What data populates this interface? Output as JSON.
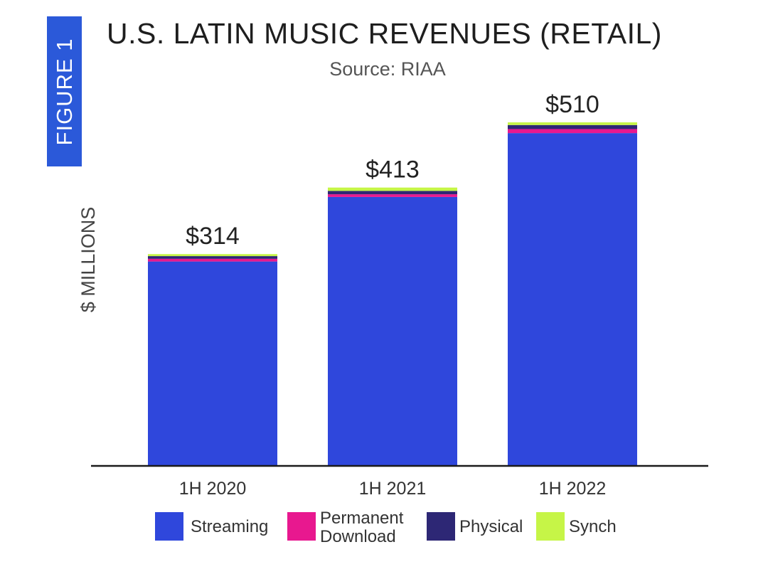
{
  "badge": {
    "label": "FIGURE 1"
  },
  "chart_data": {
    "type": "bar",
    "stacked": true,
    "title": "U.S. LATIN MUSIC REVENUES (RETAIL)",
    "subtitle": "Source: RIAA",
    "ylabel": "$ MILLIONS",
    "xlabel": "",
    "categories": [
      "1H 2020",
      "1H 2021",
      "1H 2022"
    ],
    "totals": [
      "$314",
      "$413",
      "$510"
    ],
    "ylim": [
      0,
      510
    ],
    "series": [
      {
        "name": "Streaming",
        "color": "#2f47dc",
        "values": [
          303,
          399,
          494
        ]
      },
      {
        "name": "Permanent Download",
        "color": "#e8188f",
        "values": [
          4,
          4,
          6
        ]
      },
      {
        "name": "Physical",
        "color": "#2d2775",
        "values": [
          4,
          5,
          6
        ]
      },
      {
        "name": "Synch",
        "color": "#c6f547",
        "values": [
          3,
          5,
          4
        ]
      }
    ],
    "legend": [
      {
        "key": "streaming",
        "label": "Streaming",
        "color": "#2f47dc"
      },
      {
        "key": "download",
        "label": "Permanent Download",
        "color": "#e8188f"
      },
      {
        "key": "physical",
        "label": "Physical",
        "color": "#2d2775"
      },
      {
        "key": "synch",
        "label": "Synch",
        "color": "#c6f547"
      }
    ]
  }
}
